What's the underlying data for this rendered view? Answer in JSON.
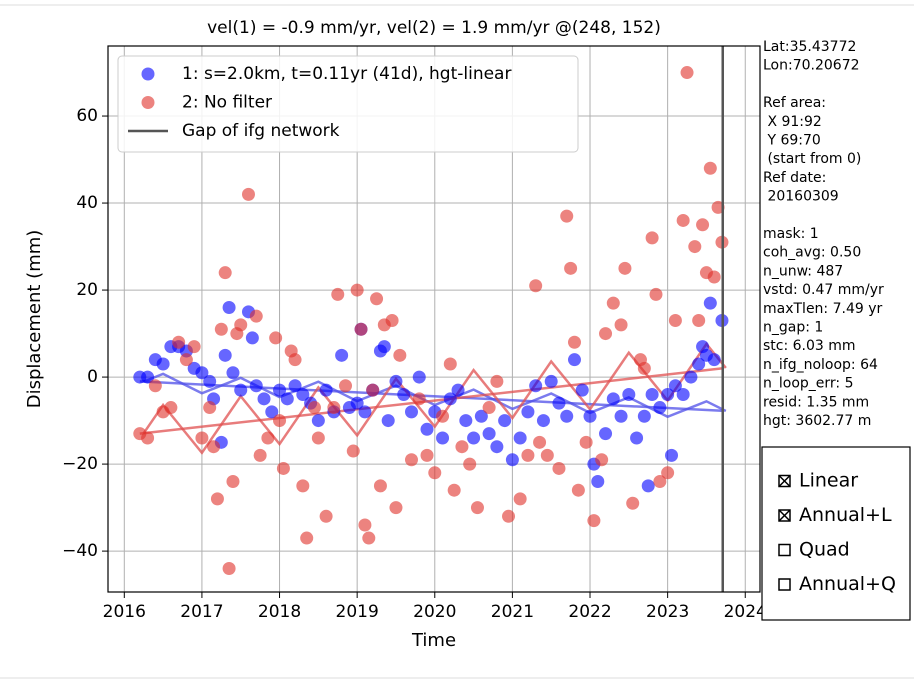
{
  "chart_data": {
    "type": "scatter",
    "title": "vel(1) = -0.9 mm/yr, vel(2) = 1.9 mm/yr @(248, 152)",
    "x_label": "Time",
    "y_label": "Displacement (mm)",
    "xlim": [
      2015.79,
      2024.19
    ],
    "ylim": [
      -49.4,
      76.1
    ],
    "xticks": [
      2016,
      2017,
      2018,
      2019,
      2020,
      2021,
      2022,
      2023,
      2024
    ],
    "yticks": [
      {
        "value": -40,
        "label": "−40"
      },
      {
        "value": -20,
        "label": "−20"
      },
      0,
      20,
      40,
      60
    ],
    "grid": true,
    "legend": "upper left",
    "series": [
      {
        "name": "1: s=2.0km, t=0.11yr (41d), hgt-linear",
        "color": "#0000ff",
        "x": [
          2016.2,
          2016.3,
          2016.4,
          2016.5,
          2016.6,
          2016.7,
          2016.8,
          2016.9,
          2017.0,
          2017.1,
          2017.15,
          2017.25,
          2017.3,
          2017.35,
          2017.4,
          2017.5,
          2017.6,
          2017.65,
          2017.7,
          2017.8,
          2017.9,
          2018.0,
          2018.1,
          2018.2,
          2018.3,
          2018.4,
          2018.5,
          2018.6,
          2018.7,
          2018.8,
          2018.9,
          2019.0,
          2019.05,
          2019.1,
          2019.2,
          2019.3,
          2019.35,
          2019.4,
          2019.5,
          2019.6,
          2019.7,
          2019.8,
          2019.9,
          2020.0,
          2020.1,
          2020.2,
          2020.3,
          2020.4,
          2020.5,
          2020.6,
          2020.7,
          2020.8,
          2020.9,
          2021.0,
          2021.1,
          2021.2,
          2021.3,
          2021.4,
          2021.5,
          2021.6,
          2021.7,
          2021.8,
          2021.9,
          2022.0,
          2022.05,
          2022.1,
          2022.2,
          2022.3,
          2022.4,
          2022.5,
          2022.6,
          2022.7,
          2022.75,
          2022.8,
          2022.9,
          2023.0,
          2023.05,
          2023.1,
          2023.2,
          2023.3,
          2023.4,
          2023.45,
          2023.5,
          2023.55,
          2023.6,
          2023.7
        ],
        "values": [
          0,
          0,
          4,
          3,
          7,
          7,
          6,
          2,
          1,
          -1,
          -5,
          -15,
          5,
          16,
          1,
          -3,
          15,
          9,
          -2,
          -5,
          -8,
          -3,
          -5,
          -2,
          -4,
          -6,
          -10,
          -3,
          -8,
          5,
          -7,
          -6,
          11,
          -8,
          -3,
          6,
          7,
          -10,
          -1,
          -4,
          -8,
          0,
          -12,
          -8,
          -14,
          -5,
          -3,
          -10,
          -14,
          -9,
          -13,
          -16,
          -10,
          -19,
          -14,
          -8,
          -2,
          -10,
          -1,
          -6,
          -9,
          4,
          -3,
          -9,
          -20,
          -24,
          -13,
          -5,
          -9,
          -4,
          -14,
          -9,
          -25,
          -4,
          -7,
          -4,
          -18,
          -2,
          -4,
          0,
          3,
          7,
          5,
          17,
          4,
          13
        ]
      },
      {
        "name": "2: No filter",
        "color": "#e0302a",
        "x": [
          2016.2,
          2016.3,
          2016.4,
          2016.5,
          2016.6,
          2016.7,
          2016.8,
          2016.9,
          2017.0,
          2017.1,
          2017.15,
          2017.2,
          2017.25,
          2017.3,
          2017.35,
          2017.4,
          2017.45,
          2017.5,
          2017.6,
          2017.7,
          2017.75,
          2017.85,
          2017.95,
          2018.0,
          2018.05,
          2018.15,
          2018.2,
          2018.3,
          2018.35,
          2018.45,
          2018.5,
          2018.6,
          2018.7,
          2018.75,
          2018.85,
          2018.95,
          2019.0,
          2019.05,
          2019.1,
          2019.15,
          2019.2,
          2019.25,
          2019.3,
          2019.35,
          2019.45,
          2019.5,
          2019.55,
          2019.7,
          2019.8,
          2019.9,
          2020.0,
          2020.1,
          2020.2,
          2020.25,
          2020.35,
          2020.45,
          2020.55,
          2020.7,
          2020.8,
          2020.95,
          2021.1,
          2021.2,
          2021.3,
          2021.35,
          2021.45,
          2021.6,
          2021.7,
          2021.75,
          2021.8,
          2021.85,
          2021.95,
          2022.05,
          2022.15,
          2022.2,
          2022.3,
          2022.4,
          2022.45,
          2022.55,
          2022.65,
          2022.7,
          2022.8,
          2022.85,
          2022.9,
          2023.0,
          2023.1,
          2023.2,
          2023.25,
          2023.35,
          2023.4,
          2023.45,
          2023.5,
          2023.55,
          2023.6,
          2023.65,
          2023.7
        ],
        "values": [
          -13,
          -14,
          -2,
          -8,
          -7,
          8,
          4,
          7,
          -14,
          -7,
          -16,
          -28,
          11,
          24,
          -44,
          -24,
          10,
          12,
          42,
          14,
          -18,
          -14,
          9,
          -10,
          -21,
          6,
          4,
          -25,
          -37,
          -7,
          -14,
          -32,
          -7,
          19,
          -2,
          -17,
          20,
          11,
          -34,
          -37,
          -3,
          18,
          -25,
          12,
          13,
          -30,
          5,
          -19,
          -5,
          -18,
          -22,
          -9,
          3,
          -26,
          -16,
          -20,
          -30,
          -7,
          -1,
          -32,
          -28,
          -18,
          21,
          -15,
          -18,
          -21,
          37,
          25,
          8,
          -26,
          -15,
          -33,
          -19,
          10,
          17,
          12,
          25,
          -29,
          4,
          2,
          32,
          19,
          -24,
          -22,
          13,
          36,
          70,
          30,
          13,
          35,
          24,
          48,
          23,
          39,
          31
        ]
      }
    ],
    "fits": [
      {
        "color": "#4f4fe8",
        "x": [
          2016.2,
          2023.7
        ],
        "values": [
          -1.0,
          -7.75
        ]
      },
      {
        "color": "#4f4fe8",
        "x": [
          2016.25,
          2016.5,
          2016.75,
          2017.0,
          2017.25,
          2017.5,
          2017.75,
          2018.0,
          2018.25,
          2018.5,
          2018.75,
          2019.0,
          2019.25,
          2019.5,
          2019.75,
          2020.0,
          2020.25,
          2020.5,
          2020.75,
          2021.0,
          2021.25,
          2021.5,
          2021.75,
          2022.0,
          2022.25,
          2022.5,
          2022.75,
          2023.0,
          2023.25,
          2023.5,
          2023.75
        ],
        "values": [
          -1.05,
          0.73,
          -1.5,
          -3.72,
          -1.95,
          -0.17,
          -2.4,
          -4.62,
          -2.85,
          -1.07,
          -3.3,
          -5.52,
          -3.75,
          -1.97,
          -4.2,
          -6.42,
          -4.65,
          -2.87,
          -5.1,
          -7.32,
          -5.55,
          -3.77,
          -6.0,
          -8.22,
          -6.45,
          -4.67,
          -6.9,
          -9.12,
          -7.35,
          -5.57,
          -7.8
        ]
      },
      {
        "color": "#e05050",
        "x": [
          2016.2,
          2023.7
        ],
        "values": [
          -13.0,
          2.0
        ]
      },
      {
        "color": "#e05050",
        "x": [
          2016.25,
          2016.5,
          2016.75,
          2017.0,
          2017.25,
          2017.5,
          2017.75,
          2018.0,
          2018.25,
          2018.5,
          2018.75,
          2019.0,
          2019.25,
          2019.5,
          2019.75,
          2020.0,
          2020.25,
          2020.5,
          2020.75,
          2021.0,
          2021.25,
          2021.5,
          2021.75,
          2022.0,
          2022.25,
          2022.5,
          2022.75,
          2023.0,
          2023.25,
          2023.5,
          2023.75
        ],
        "values": [
          -12.9,
          -6.4,
          -11.9,
          -17.4,
          -10.9,
          -4.4,
          -9.9,
          -15.4,
          -8.9,
          -2.4,
          -7.9,
          -13.4,
          -6.9,
          -0.4,
          -5.9,
          -11.4,
          -4.9,
          1.6,
          -3.9,
          -9.4,
          -2.9,
          3.6,
          -1.9,
          -7.4,
          -0.9,
          5.6,
          0.1,
          -5.4,
          1.1,
          7.6,
          2.1
        ]
      }
    ],
    "gap": {
      "name": "Gap of ifg network",
      "x": 2023.71,
      "color": "#555555"
    }
  },
  "info_blocks": [
    [
      "Lat:35.43772",
      "Lon:70.20672"
    ],
    [
      "Ref area:",
      " X 91:92",
      " Y 69:70",
      " (start from 0)",
      "Ref date:",
      " 20160309"
    ],
    [
      "mask: 1",
      "coh_avg: 0.50",
      "n_unw: 487",
      "vstd: 0.47 mm/yr",
      "maxTlen: 7.49 yr",
      "n_gap: 1",
      "stc: 6.03 mm",
      "n_ifg_noloop: 64",
      "n_loop_err: 5",
      "resid: 1.35 mm",
      "hgt: 3602.77 m"
    ]
  ],
  "fit_options": [
    {
      "label": "Linear",
      "checked": true
    },
    {
      "label": "Annual+L",
      "checked": true
    },
    {
      "label": "Quad",
      "checked": false
    },
    {
      "label": "Annual+Q",
      "checked": false
    }
  ]
}
